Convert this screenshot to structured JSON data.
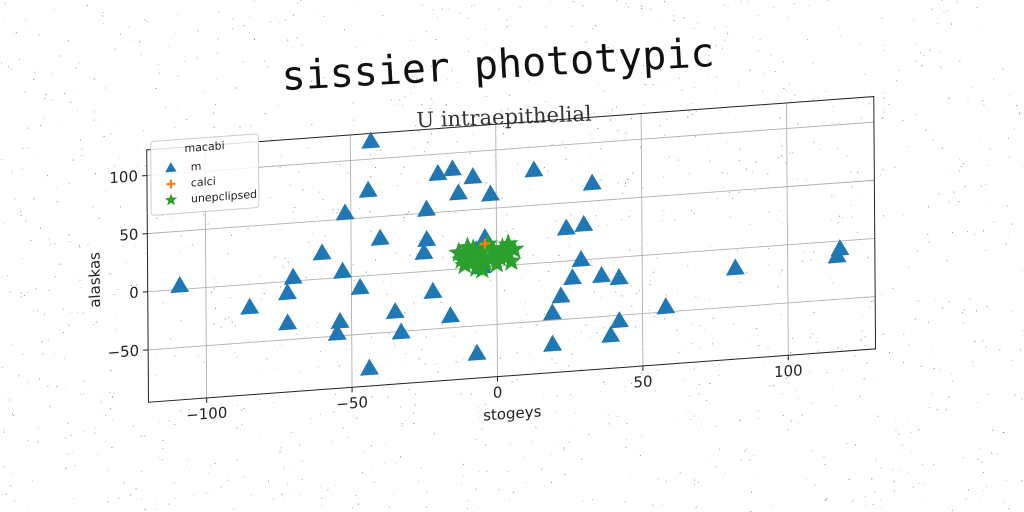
{
  "chart_data": {
    "type": "scatter",
    "title": "sissier phototypic",
    "subtitle": "U intraepithelial",
    "xlabel": "stogeys",
    "ylabel": "alaskas",
    "xlim": [
      -120,
      130
    ],
    "ylim": [
      -95,
      122
    ],
    "xticks": [
      -100,
      -50,
      0,
      50,
      100
    ],
    "yticks": [
      -50,
      0,
      50,
      100
    ],
    "grid": true,
    "legend": {
      "title": "macabi",
      "placement": "upper-left"
    },
    "series": [
      {
        "name": "m",
        "marker": "triangle",
        "color": "#1f77b4",
        "points": [
          [
            -109,
            3
          ],
          [
            -85,
            -20
          ],
          [
            -72,
            -36
          ],
          [
            -72,
            -10
          ],
          [
            -70,
            3
          ],
          [
            -60,
            22
          ],
          [
            -55,
            -48
          ],
          [
            -54,
            -38
          ],
          [
            -53,
            5
          ],
          [
            -52,
            55
          ],
          [
            -47,
            -10
          ],
          [
            -44,
            73
          ],
          [
            -44,
            -80
          ],
          [
            -43,
            115
          ],
          [
            -40,
            31
          ],
          [
            -35,
            -33
          ],
          [
            -33,
            -51
          ],
          [
            -24,
            27
          ],
          [
            -25,
            16
          ],
          [
            -24,
            53
          ],
          [
            -22,
            -18
          ],
          [
            -20,
            83
          ],
          [
            -16,
            -40
          ],
          [
            -15,
            86
          ],
          [
            -13,
            65
          ],
          [
            -8,
            78
          ],
          [
            -7,
            -74
          ],
          [
            -7,
            15
          ],
          [
            -5,
            0
          ],
          [
            -4,
            25
          ],
          [
            -2,
            62
          ],
          [
            13,
            80
          ],
          [
            19,
            -44
          ],
          [
            19,
            -71
          ],
          [
            22,
            -30
          ],
          [
            24,
            28
          ],
          [
            26,
            -15
          ],
          [
            29,
            0
          ],
          [
            30,
            30
          ],
          [
            33,
            65
          ],
          [
            36,
            -15
          ],
          [
            39,
            -67
          ],
          [
            42,
            -55
          ],
          [
            42,
            -18
          ],
          [
            58,
            -46
          ],
          [
            82,
            -17
          ],
          [
            117,
            -13
          ],
          [
            118,
            -7
          ]
        ]
      },
      {
        "name": "calci",
        "marker": "plus",
        "color": "#ff7f0e",
        "points": [
          [
            -4,
            20
          ]
        ]
      },
      {
        "name": "unepclipsed",
        "marker": "star",
        "color": "#2ca02c",
        "points": [
          [
            -13,
            14
          ],
          [
            -12,
            8
          ],
          [
            -11,
            3
          ],
          [
            -9,
            11
          ],
          [
            -8,
            16
          ],
          [
            -8,
            6
          ],
          [
            -7,
            0
          ],
          [
            -6,
            10
          ],
          [
            -5,
            14
          ],
          [
            -4,
            4
          ],
          [
            -3,
            19
          ],
          [
            -2,
            8
          ],
          [
            -1,
            13
          ],
          [
            0,
            2
          ],
          [
            1,
            7
          ],
          [
            2,
            15
          ],
          [
            3,
            10
          ],
          [
            5,
            3
          ],
          [
            6,
            13
          ],
          [
            -10,
            18
          ],
          [
            -5,
            -2
          ],
          [
            4,
            18
          ]
        ]
      }
    ]
  }
}
